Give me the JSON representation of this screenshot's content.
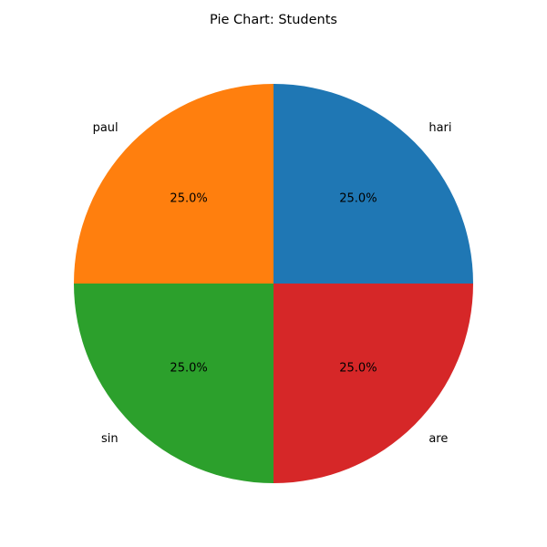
{
  "chart_data": {
    "type": "pie",
    "title": "Pie Chart: Students",
    "labels": [
      "hari",
      "paul",
      "sin",
      "are"
    ],
    "values": [
      25,
      25,
      25,
      25
    ],
    "percent_labels": [
      "25.0%",
      "25.0%",
      "25.0%",
      "25.0%"
    ],
    "colors": [
      "#1f77b4",
      "#ff7f0e",
      "#2ca02c",
      "#d62728"
    ],
    "start_angle_deg": 0,
    "direction": "counterclockwise"
  }
}
